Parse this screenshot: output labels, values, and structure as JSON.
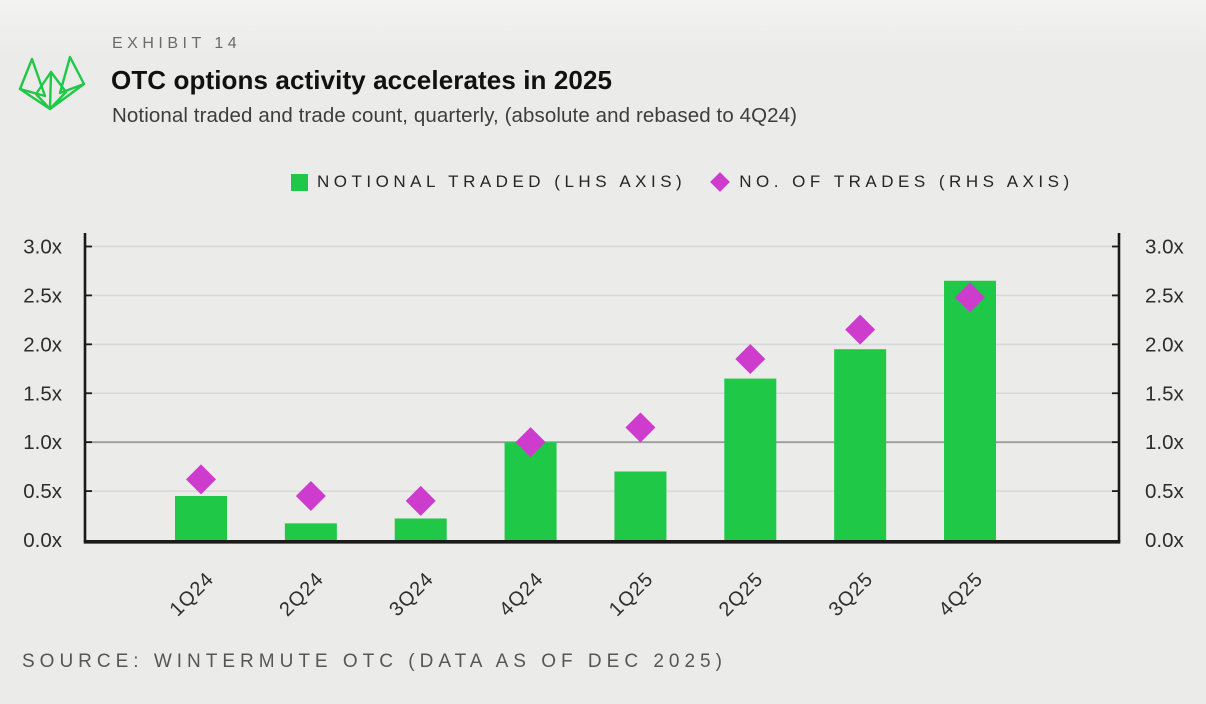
{
  "header": {
    "exhibit_label": "EXHIBIT 14",
    "title": "OTC options activity accelerates in 2025",
    "subtitle": "Notional traded and trade count, quarterly, (absolute and rebased to 4Q24)"
  },
  "logo": {
    "name": "wintermute-logo"
  },
  "legend": [
    {
      "label": "NOTIONAL TRADED (LHS AXIS)",
      "marker": "square",
      "color": "#1fc947"
    },
    {
      "label": "NO. OF TRADES (RHS AXIS)",
      "marker": "diamond",
      "color": "#cd3ccd"
    }
  ],
  "chart_data": {
    "type": "bar",
    "subtype": "bar-with-diamond-markers",
    "categories": [
      "1Q24",
      "2Q24",
      "3Q24",
      "4Q24",
      "1Q25",
      "2Q25",
      "3Q25",
      "4Q25"
    ],
    "series": [
      {
        "name": "NOTIONAL TRADED (LHS AXIS)",
        "type": "bar",
        "axis": "left",
        "marker": "square",
        "color": "#1fc947",
        "values": [
          0.45,
          0.17,
          0.22,
          1.0,
          0.7,
          1.65,
          1.95,
          2.65
        ]
      },
      {
        "name": "NO. OF TRADES (RHS AXIS)",
        "type": "scatter",
        "axis": "right",
        "marker": "diamond",
        "color": "#cd3ccd",
        "values": [
          0.62,
          0.45,
          0.4,
          1.0,
          1.15,
          1.85,
          2.15,
          2.48
        ]
      }
    ],
    "y_axis": {
      "min": 0,
      "max": 3.0,
      "step": 0.5,
      "sides": [
        "left",
        "right"
      ],
      "ticks": [
        {
          "v": 0.0,
          "label": "0.0x"
        },
        {
          "v": 0.5,
          "label": "0.5x"
        },
        {
          "v": 1.0,
          "label": "1.0x"
        },
        {
          "v": 1.5,
          "label": "1.5x"
        },
        {
          "v": 2.0,
          "label": "2.0x"
        },
        {
          "v": 2.5,
          "label": "2.5x"
        },
        {
          "v": 3.0,
          "label": "3.0x"
        }
      ],
      "emphasized_gridline_value": 1.0
    },
    "grid": true,
    "legend_position": "top",
    "x_label_rotation_deg": -45
  },
  "source": {
    "text": "SOURCE: WINTERMUTE OTC (DATA AS OF DEC 2025)"
  },
  "colors": {
    "green": "#1fc947",
    "magenta": "#cd3ccd",
    "background": "#ebebea",
    "grid": "#d8d8d8",
    "grid_emphasis": "#9c9c9c",
    "axis": "#1a1a1a",
    "title": "#111111",
    "subtitle": "#3d3d3d",
    "muted_label": "#6b6b6b",
    "source": "#565656",
    "tick_label": "#2d2d2d"
  }
}
